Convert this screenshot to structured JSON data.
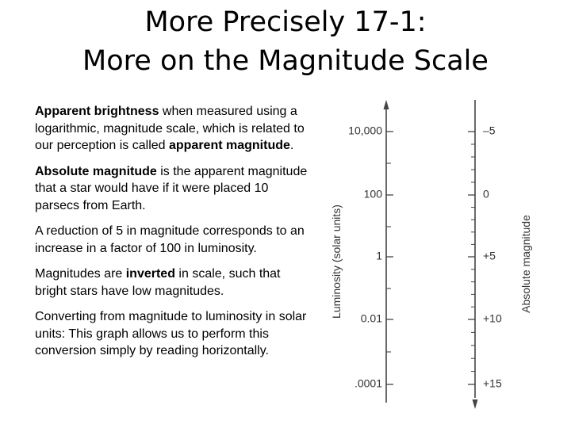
{
  "title": {
    "line1": "More Precisely 17-1:",
    "line2": "More on the Magnitude Scale"
  },
  "paragraphs": [
    [
      {
        "text": "Apparent brightness",
        "bold": true
      },
      {
        "text": " when measured using a logarithmic, magnitude scale, which is related to our perception is called ",
        "bold": false
      },
      {
        "text": "apparent magnitude",
        "bold": true
      },
      {
        "text": ".",
        "bold": false
      }
    ],
    [
      {
        "text": "Absolute magnitude",
        "bold": true
      },
      {
        "text": " is the apparent magnitude that a star would have if it were placed 10 parsecs from Earth.",
        "bold": false
      }
    ],
    [
      {
        "text": "A reduction of 5 in magnitude corresponds to an increase in a factor of 100 in luminosity.",
        "bold": false
      }
    ],
    [
      {
        "text": "Magnitudes are ",
        "bold": false
      },
      {
        "text": "inverted",
        "bold": true
      },
      {
        "text": " in scale, such that bright stars have low magnitudes.",
        "bold": false
      }
    ],
    [
      {
        "text": "Converting from magnitude to luminosity in solar units: This graph allows us to perform this conversion simply by reading horizontally.",
        "bold": false
      }
    ]
  ],
  "scale": {
    "luminosity_axis_label": "Luminosity (solar units)",
    "magnitude_axis_label": "Absolute magnitude",
    "luminosity_ticks": [
      "10,000",
      "100",
      "1",
      "0.01",
      ".0001"
    ],
    "magnitude_ticks": [
      "–5",
      "0",
      "+5",
      "+10",
      "+15"
    ],
    "line_color": "#444444",
    "text_color": "#333333"
  }
}
